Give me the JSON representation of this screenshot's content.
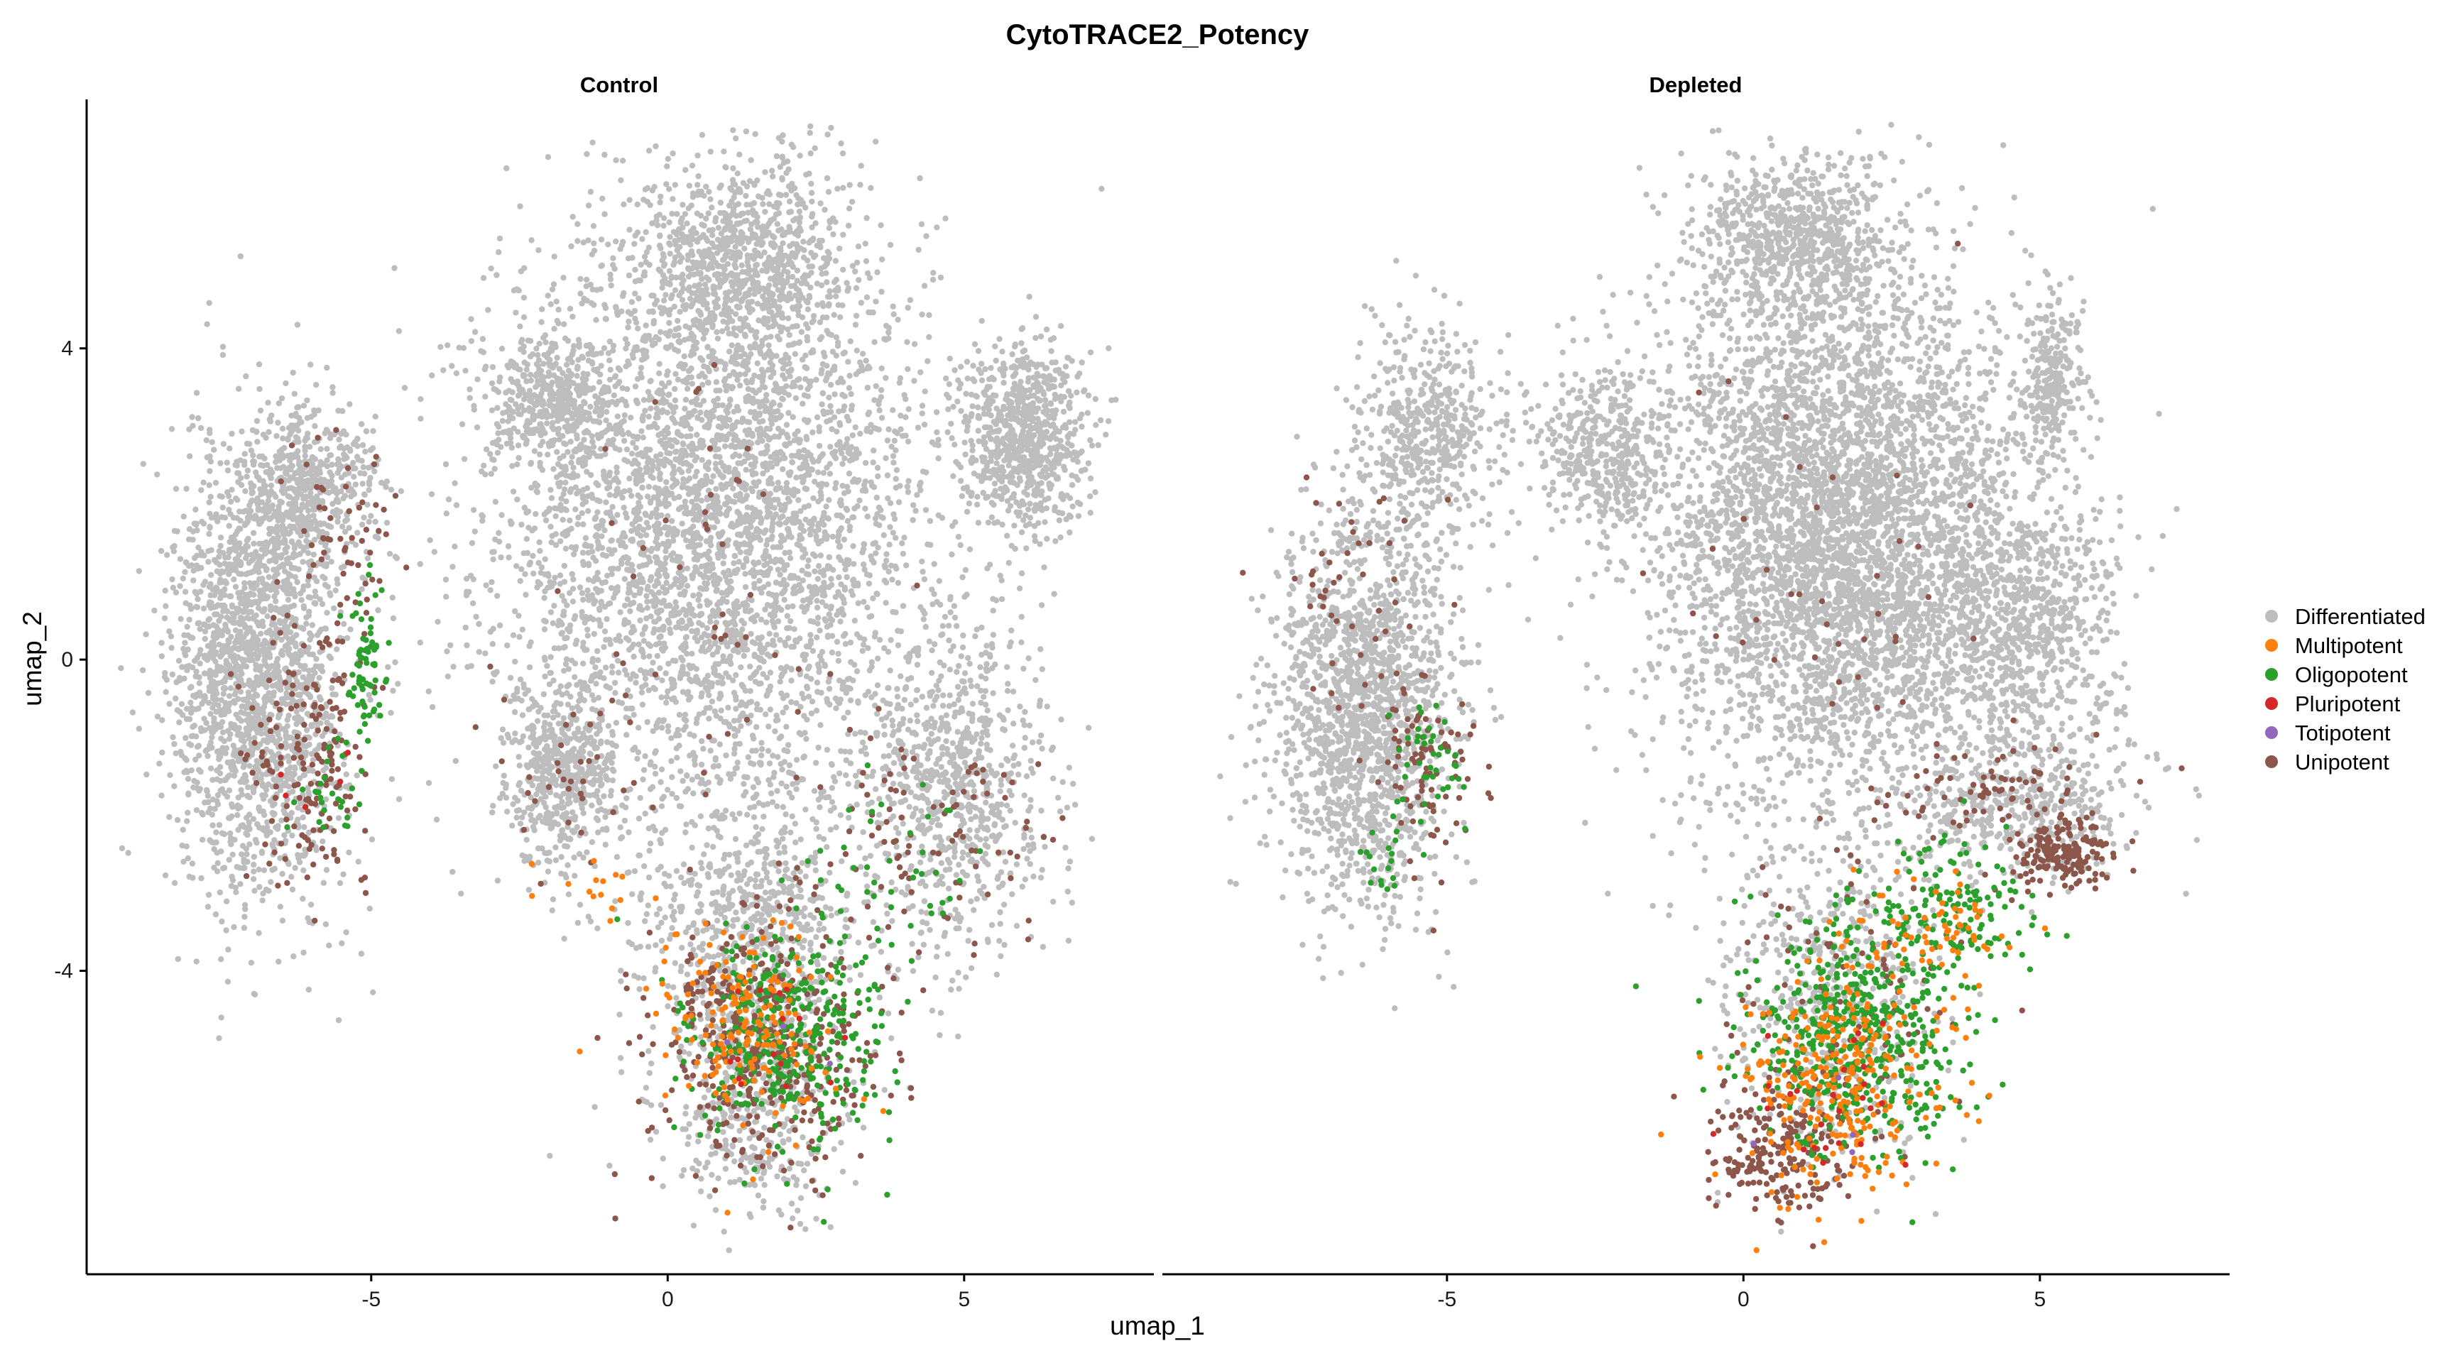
{
  "chart_data": {
    "type": "scatter",
    "title": "CytoTRACE2_Potency",
    "xlabel": "umap_1",
    "ylabel": "umap_2",
    "xlim": [
      -9.8,
      8.2
    ],
    "ylim": [
      -7.9,
      7.2
    ],
    "xticks": [
      -5,
      0,
      5
    ],
    "yticks": [
      -4,
      0,
      4
    ],
    "grid": false,
    "legend_position": "right",
    "panels": [
      "Control",
      "Depleted"
    ],
    "series": [
      {
        "name": "Differentiated",
        "color": "#BDBDBD"
      },
      {
        "name": "Multipotent",
        "color": "#FF7F0E"
      },
      {
        "name": "Oligopotent",
        "color": "#2CA02C"
      },
      {
        "name": "Pluripotent",
        "color": "#D62728"
      },
      {
        "name": "Totipotent",
        "color": "#9467BD"
      },
      {
        "name": "Unipotent",
        "color": "#8C564B"
      }
    ],
    "regions": {
      "Control": {
        "Differentiated": [
          {
            "cx": 0.8,
            "cy": 1.8,
            "sx": 2.4,
            "sy": 2.6,
            "n": 4200
          },
          {
            "cx": 1.3,
            "cy": 5.2,
            "sx": 1.1,
            "sy": 0.8,
            "n": 700
          },
          {
            "cx": 6.0,
            "cy": 2.9,
            "sx": 0.7,
            "sy": 0.8,
            "n": 800
          },
          {
            "cx": -6.9,
            "cy": -0.2,
            "sx": 0.95,
            "sy": 1.9,
            "n": 2000
          },
          {
            "cx": -6.1,
            "cy": 2.2,
            "sx": 0.8,
            "sy": 0.7,
            "n": 500
          },
          {
            "cx": -1.9,
            "cy": 3.3,
            "sx": 0.7,
            "sy": 0.5,
            "n": 400
          },
          {
            "cx": -1.8,
            "cy": -1.4,
            "sx": 0.6,
            "sy": 0.8,
            "n": 500
          },
          {
            "cx": 4.9,
            "cy": -1.6,
            "sx": 1.0,
            "sy": 1.4,
            "n": 800
          },
          {
            "cx": 1.5,
            "cy": -3.5,
            "sx": 1.2,
            "sy": 1.2,
            "n": 700
          },
          {
            "cx": 1.4,
            "cy": -5.8,
            "sx": 1.0,
            "sy": 0.9,
            "n": 400
          }
        ],
        "Unipotent": [
          {
            "cx": 1.6,
            "cy": -4.9,
            "sx": 1.3,
            "sy": 1.1,
            "n": 420
          },
          {
            "cx": -6.0,
            "cy": -1.2,
            "sx": 0.7,
            "sy": 1.1,
            "n": 170
          },
          {
            "cx": -5.4,
            "cy": 1.5,
            "sx": 0.6,
            "sy": 1.0,
            "n": 60
          },
          {
            "cx": 4.6,
            "cy": -2.2,
            "sx": 1.3,
            "sy": 0.9,
            "n": 90
          },
          {
            "cx": -1.6,
            "cy": -1.6,
            "sx": 0.6,
            "sy": 0.7,
            "n": 30
          },
          {
            "cx": 0.6,
            "cy": 1.0,
            "sx": 2.0,
            "sy": 2.0,
            "n": 50
          }
        ],
        "Oligopotent": [
          {
            "cx": 2.0,
            "cy": -4.9,
            "sx": 1.1,
            "sy": 1.0,
            "n": 360
          },
          {
            "cx": -5.1,
            "cy": -0.3,
            "sx": 0.22,
            "sy": 0.8,
            "n": 70
          },
          {
            "cx": 3.7,
            "cy": -2.6,
            "sx": 1.0,
            "sy": 0.8,
            "n": 40
          },
          {
            "cx": -5.8,
            "cy": -1.6,
            "sx": 0.5,
            "sy": 0.5,
            "n": 25
          }
        ],
        "Multipotent": [
          {
            "cx": 1.3,
            "cy": -4.8,
            "sx": 1.0,
            "sy": 0.9,
            "n": 170
          },
          {
            "cx": -1.2,
            "cy": -2.9,
            "sx": 0.6,
            "sy": 0.3,
            "n": 15
          }
        ],
        "Pluripotent": [
          {
            "cx": 1.5,
            "cy": -5.0,
            "sx": 1.0,
            "sy": 0.9,
            "n": 15
          },
          {
            "cx": -5.9,
            "cy": -1.5,
            "sx": 0.4,
            "sy": 0.4,
            "n": 5
          }
        ],
        "Totipotent": [
          {
            "cx": 1.4,
            "cy": -5.0,
            "sx": 0.8,
            "sy": 0.8,
            "n": 3
          }
        ]
      },
      "Depleted": {
        "Differentiated": [
          {
            "cx": 1.6,
            "cy": 1.7,
            "sx": 2.1,
            "sy": 2.3,
            "n": 4600
          },
          {
            "cx": 0.9,
            "cy": 5.4,
            "sx": 1.1,
            "sy": 0.7,
            "n": 700
          },
          {
            "cx": 4.6,
            "cy": 0.3,
            "sx": 1.1,
            "sy": 1.2,
            "n": 800
          },
          {
            "cx": 5.2,
            "cy": 3.6,
            "sx": 0.35,
            "sy": 0.7,
            "n": 250
          },
          {
            "cx": -6.4,
            "cy": -0.6,
            "sx": 1.0,
            "sy": 1.7,
            "n": 1700
          },
          {
            "cx": -5.3,
            "cy": 2.9,
            "sx": 0.8,
            "sy": 0.9,
            "n": 500
          },
          {
            "cx": -2.4,
            "cy": 2.7,
            "sx": 0.7,
            "sy": 0.7,
            "n": 400
          },
          {
            "cx": 1.5,
            "cy": -4.2,
            "sx": 1.3,
            "sy": 1.4,
            "n": 500
          },
          {
            "cx": 4.8,
            "cy": -1.9,
            "sx": 1.3,
            "sy": 0.6,
            "n": 400
          }
        ],
        "Unipotent": [
          {
            "cx": 0.6,
            "cy": -6.3,
            "sx": 0.8,
            "sy": 0.6,
            "n": 220
          },
          {
            "cx": 5.3,
            "cy": -2.5,
            "sx": 0.6,
            "sy": 0.3,
            "n": 170
          },
          {
            "cx": 4.2,
            "cy": -1.7,
            "sx": 1.3,
            "sy": 0.35,
            "n": 80
          },
          {
            "cx": -5.3,
            "cy": -1.4,
            "sx": 0.5,
            "sy": 0.8,
            "n": 90
          },
          {
            "cx": -6.5,
            "cy": 0.8,
            "sx": 0.9,
            "sy": 1.5,
            "n": 50
          },
          {
            "cx": 2.0,
            "cy": -4.5,
            "sx": 1.2,
            "sy": 1.2,
            "n": 100
          },
          {
            "cx": 1.5,
            "cy": 1.0,
            "sx": 2.0,
            "sy": 1.8,
            "n": 40
          }
        ],
        "Oligopotent": [
          {
            "cx": 1.9,
            "cy": -4.8,
            "sx": 1.2,
            "sy": 1.1,
            "n": 520
          },
          {
            "cx": 3.6,
            "cy": -3.2,
            "sx": 0.8,
            "sy": 0.6,
            "n": 130
          },
          {
            "cx": -5.3,
            "cy": -1.3,
            "sx": 0.4,
            "sy": 0.5,
            "n": 40
          },
          {
            "cx": -6.1,
            "cy": -2.5,
            "sx": 0.35,
            "sy": 0.35,
            "n": 20
          }
        ],
        "Multipotent": [
          {
            "cx": 1.7,
            "cy": -5.4,
            "sx": 1.1,
            "sy": 1.0,
            "n": 300
          },
          {
            "cx": 3.3,
            "cy": -3.6,
            "sx": 0.7,
            "sy": 0.6,
            "n": 60
          }
        ],
        "Pluripotent": [
          {
            "cx": 1.2,
            "cy": -5.8,
            "sx": 0.9,
            "sy": 0.7,
            "n": 25
          }
        ],
        "Totipotent": [
          {
            "cx": 1.0,
            "cy": -6.0,
            "sx": 0.7,
            "sy": 0.6,
            "n": 4
          }
        ]
      }
    }
  }
}
